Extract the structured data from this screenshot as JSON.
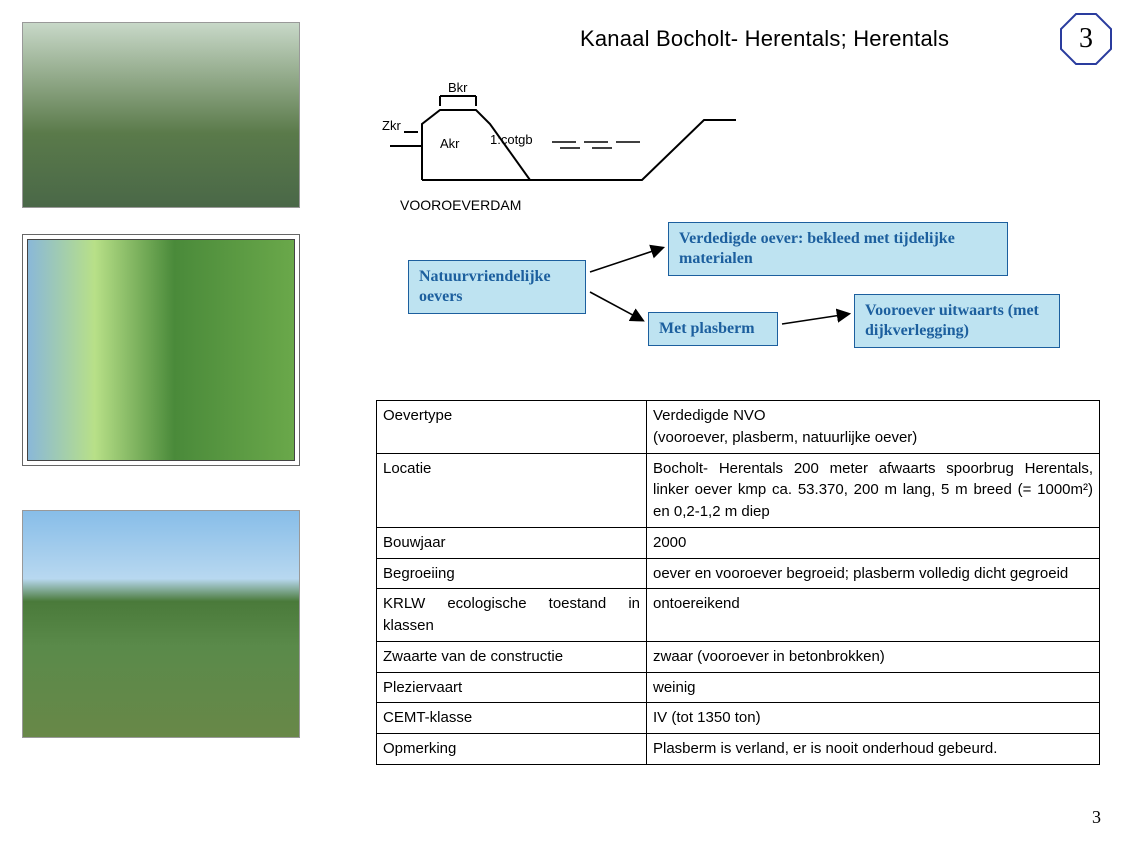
{
  "title": "Kanaal Bocholt- Herentals;  Herentals",
  "octagon": {
    "number": "3",
    "stroke": "#2a3c9e",
    "stroke_width": 2
  },
  "page_number": "3",
  "cross_section": {
    "label_top_left": "Zkr",
    "label_top_center": "Bkr",
    "label_center": "Akr",
    "label_slope": "1:cotgb",
    "caption": "VOOROEVERDAM",
    "stroke": "#000000"
  },
  "flowchart": {
    "box_fill": "#bee3f1",
    "box_border": "#1c5f9e",
    "text_color": "#1c5f9e",
    "arrow_stroke": "#000000",
    "root": "Natuurvriendelijke oevers",
    "top": "Verdedigde oever: bekleed met tijdelijke materialen",
    "mid": "Met plasberm",
    "right": "Vooroever uitwaarts (met dijkverlegging)"
  },
  "table": {
    "rows": [
      {
        "key": "Oevertype",
        "val": "Verdedigde NVO\n(vooroever, plasberm, natuurlijke oever)"
      },
      {
        "key": "Locatie",
        "val": "Bocholt- Herentals 200 meter afwaarts spoorbrug Herentals, linker oever kmp ca. 53.370, 200 m lang, 5 m breed (= 1000m²) en 0,2-1,2 m diep",
        "valJustify": true
      },
      {
        "key": "Bouwjaar",
        "val": "2000"
      },
      {
        "key": "Begroeiing",
        "val": "oever en vooroever begroeid; plasberm volledig dicht gegroeid",
        "valJustify": true
      },
      {
        "key": "KRLW ecologische toestand in klassen",
        "val": "ontoereikend",
        "keyJustify": true
      },
      {
        "key": "Zwaarte van de constructie",
        "val": "zwaar (vooroever in betonbrokken)"
      },
      {
        "key": "Pleziervaart",
        "val": "weinig"
      },
      {
        "key": "CEMT-klasse",
        "val": "IV (tot 1350 ton)"
      },
      {
        "key": "Opmerking",
        "val": "Plasberm is verland, er is nooit onderhoud gebeurd."
      }
    ]
  }
}
